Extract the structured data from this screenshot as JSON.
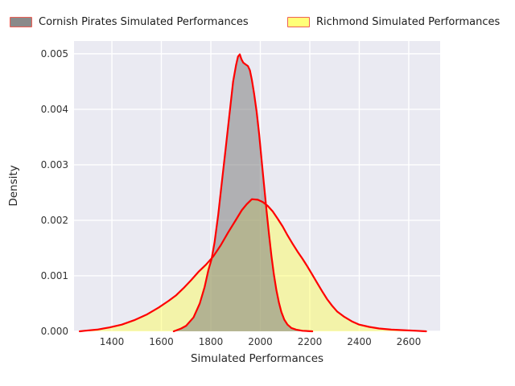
{
  "legend": {
    "items": [
      {
        "label": "Cornish Pirates Simulated Performances",
        "fill": "#8a8a8a",
        "edge": "#ee5f55"
      },
      {
        "label": "Richmond Simulated Performances",
        "fill": "#ffff78",
        "edge": "#ee5f55"
      }
    ]
  },
  "chart_data": {
    "type": "area",
    "subtype": "kde-density",
    "title": "",
    "xlabel": "Simulated Performances",
    "ylabel": "Density",
    "xlim": [
      1247,
      2727
    ],
    "ylim": [
      0,
      0.00523
    ],
    "grid": true,
    "plot_background": "#eaeaf2",
    "gridline_color": "#ffffff",
    "line_color": "#fe0000",
    "xtick_values": [
      1400,
      1600,
      1800,
      2000,
      2200,
      2400,
      2600
    ],
    "xtick_labels": [
      "1400",
      "1600",
      "1800",
      "2000",
      "2200",
      "2400",
      "2600"
    ],
    "ytick_values": [
      0,
      0.001,
      0.002,
      0.003,
      0.004,
      0.005
    ],
    "ytick_labels": [
      "0.000",
      "0.001",
      "0.002",
      "0.003",
      "0.004",
      "0.005"
    ],
    "series": [
      {
        "id": "richmond",
        "name": "Richmond Simulated Performances",
        "fill": "rgba(255,255,80,0.45)",
        "peak": {
          "x": 1966,
          "density": 0.00238
        },
        "points": [
          [
            1270,
            0.0
          ],
          [
            1290,
            1e-05
          ],
          [
            1340,
            3e-05
          ],
          [
            1390,
            7e-05
          ],
          [
            1440,
            0.00012
          ],
          [
            1490,
            0.0002
          ],
          [
            1540,
            0.0003
          ],
          [
            1590,
            0.00043
          ],
          [
            1630,
            0.00055
          ],
          [
            1660,
            0.00065
          ],
          [
            1690,
            0.00078
          ],
          [
            1720,
            0.00092
          ],
          [
            1750,
            0.00107
          ],
          [
            1780,
            0.0012
          ],
          [
            1810,
            0.00135
          ],
          [
            1840,
            0.00155
          ],
          [
            1870,
            0.00178
          ],
          [
            1900,
            0.002
          ],
          [
            1925,
            0.00218
          ],
          [
            1945,
            0.00229
          ],
          [
            1966,
            0.00238
          ],
          [
            1990,
            0.00237
          ],
          [
            2010,
            0.00233
          ],
          [
            2030,
            0.00226
          ],
          [
            2050,
            0.00216
          ],
          [
            2070,
            0.00203
          ],
          [
            2090,
            0.00189
          ],
          [
            2110,
            0.00173
          ],
          [
            2130,
            0.00158
          ],
          [
            2150,
            0.00144
          ],
          [
            2170,
            0.00131
          ],
          [
            2190,
            0.00117
          ],
          [
            2210,
            0.00102
          ],
          [
            2230,
            0.00087
          ],
          [
            2250,
            0.00072
          ],
          [
            2270,
            0.00058
          ],
          [
            2290,
            0.00046
          ],
          [
            2310,
            0.00036
          ],
          [
            2340,
            0.00026
          ],
          [
            2370,
            0.00018
          ],
          [
            2400,
            0.00012
          ],
          [
            2440,
            8e-05
          ],
          [
            2480,
            5e-05
          ],
          [
            2530,
            3e-05
          ],
          [
            2580,
            2e-05
          ],
          [
            2630,
            1e-05
          ],
          [
            2670,
            0.0
          ]
        ]
      },
      {
        "id": "cornish-pirates",
        "name": "Cornish Pirates Simulated Performances",
        "fill": "rgba(128,128,128,0.55)",
        "peak": {
          "x": 1917,
          "density": 0.00499
        },
        "points": [
          [
            1650,
            0.0
          ],
          [
            1680,
            5e-05
          ],
          [
            1700,
            0.0001
          ],
          [
            1730,
            0.00025
          ],
          [
            1755,
            0.0005
          ],
          [
            1775,
            0.0008
          ],
          [
            1790,
            0.0011
          ],
          [
            1803,
            0.0013
          ],
          [
            1815,
            0.0016
          ],
          [
            1830,
            0.0021
          ],
          [
            1845,
            0.0027
          ],
          [
            1860,
            0.0033
          ],
          [
            1875,
            0.0039
          ],
          [
            1890,
            0.0045
          ],
          [
            1902,
            0.0048
          ],
          [
            1910,
            0.00495
          ],
          [
            1917,
            0.00499
          ],
          [
            1924,
            0.0049
          ],
          [
            1931,
            0.00484
          ],
          [
            1940,
            0.00481
          ],
          [
            1950,
            0.00478
          ],
          [
            1958,
            0.0047
          ],
          [
            1966,
            0.00453
          ],
          [
            1975,
            0.00428
          ],
          [
            1985,
            0.00396
          ],
          [
            1995,
            0.00356
          ],
          [
            2005,
            0.0031
          ],
          [
            2015,
            0.00264
          ],
          [
            2025,
            0.00218
          ],
          [
            2035,
            0.00175
          ],
          [
            2045,
            0.00136
          ],
          [
            2055,
            0.00102
          ],
          [
            2065,
            0.00074
          ],
          [
            2075,
            0.00052
          ],
          [
            2085,
            0.00035
          ],
          [
            2097,
            0.00021
          ],
          [
            2110,
            0.00012
          ],
          [
            2126,
            6e-05
          ],
          [
            2145,
            3e-05
          ],
          [
            2170,
            1e-05
          ],
          [
            2210,
            0.0
          ]
        ]
      }
    ]
  }
}
